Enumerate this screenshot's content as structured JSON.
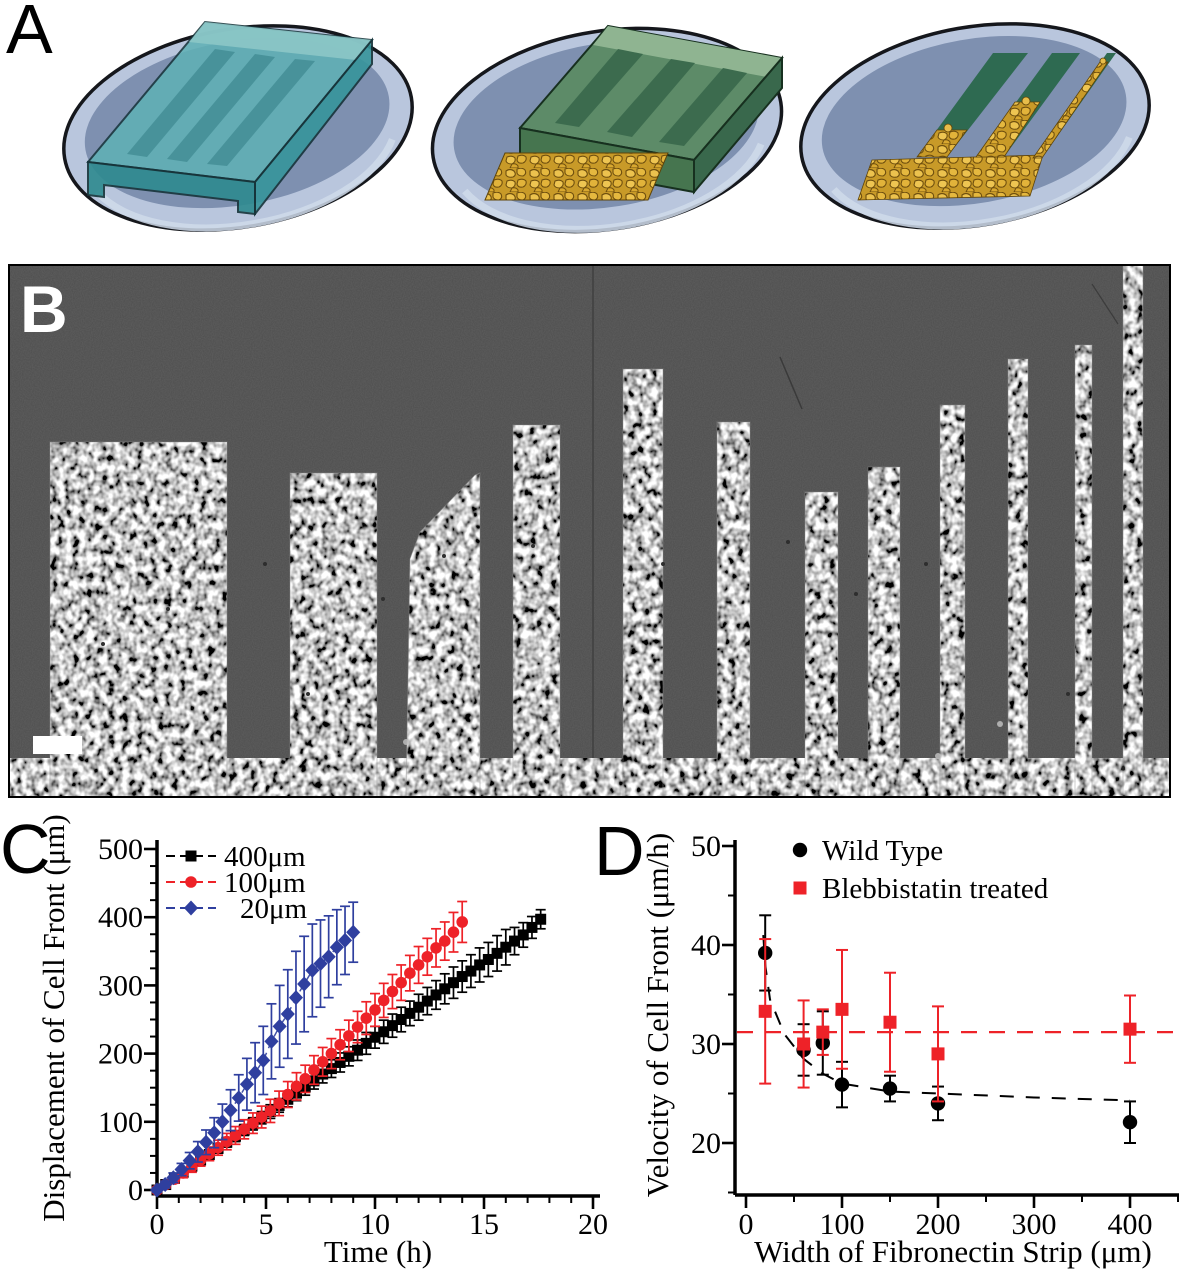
{
  "panel_labels": {
    "a": "A",
    "b": "B",
    "c": "C",
    "d": "D"
  },
  "colors": {
    "accent_red": "#ee2228",
    "accent_blue": "#2f3f9f",
    "black": "#000000",
    "dish_rim": "#b9c6dd",
    "dish_surface": "#7e90b0",
    "stamp_teal": "#5fb1b5",
    "stamp_teal_groove": "#458f97",
    "stamp_green": "#5d8b68",
    "stamp_green_stripe": "#3c6b4e",
    "fibronectin_strip_green": "#2e6a51",
    "cell_gold": "#d9a830",
    "micrograph_bg": "#4f4f4f"
  },
  "panel_b": {
    "background": "#4f4f4f",
    "border_color": "#000000",
    "seam_x": 585,
    "band_top": 494,
    "strips": [
      [
        42,
        177,
        178
      ],
      [
        282,
        87,
        209
      ],
      [
        505,
        47,
        161
      ],
      [
        615,
        40,
        105
      ],
      [
        709,
        33,
        158
      ],
      [
        797,
        33,
        228
      ],
      [
        860,
        32,
        203
      ],
      [
        932,
        25,
        141
      ],
      [
        1000,
        20,
        95
      ],
      [
        1067,
        17,
        81
      ],
      [
        1115,
        20,
        0
      ]
    ],
    "wedge": [
      [
        472,
        209
      ],
      [
        472,
        534
      ],
      [
        398,
        534
      ],
      [
        402,
        295
      ],
      [
        412,
        268
      ],
      [
        467,
        211
      ]
    ],
    "scale_bar": [
      25,
      472,
      49,
      18
    ]
  },
  "chart_data": [
    {
      "type": "scatter",
      "panel": "C",
      "title": "",
      "xlabel": "Time (h)",
      "ylabel": "Displacement of Cell Front (μm)",
      "xlim": [
        0,
        20
      ],
      "ylim": [
        0,
        500
      ],
      "xticks": [
        0,
        5,
        10,
        15,
        20
      ],
      "yticks": [
        0,
        100,
        200,
        300,
        400,
        500
      ],
      "x_minor_step": 1,
      "y_minor_step": 25,
      "grid": false,
      "legend_position": "top-left",
      "series": [
        {
          "name": "400μm",
          "color": "#000000",
          "marker": "square",
          "msize": 11,
          "line_dash": "10 4 2 4",
          "x": [
            0,
            0.4,
            0.8,
            1.2,
            1.6,
            2,
            2.4,
            2.8,
            3.2,
            3.6,
            4,
            4.4,
            4.8,
            5.2,
            5.6,
            6,
            6.4,
            6.8,
            7.2,
            7.6,
            8,
            8.4,
            8.8,
            9.2,
            9.6,
            10,
            10.4,
            10.8,
            11.2,
            11.6,
            12,
            12.4,
            12.8,
            13.2,
            13.6,
            14,
            14.4,
            14.8,
            15.2,
            15.6,
            16,
            16.4,
            16.8,
            17.2,
            17.6
          ],
          "y": [
            0,
            8,
            17,
            26,
            35,
            44,
            52,
            61,
            70,
            79,
            88,
            97,
            106,
            115,
            124,
            133,
            142,
            151,
            160,
            170,
            178,
            187,
            196,
            205,
            215,
            224,
            232,
            241,
            250,
            259,
            268,
            277,
            286,
            295,
            304,
            313,
            321,
            330,
            338,
            347,
            356,
            365,
            374,
            385,
            397
          ],
          "yerr": [
            3,
            4,
            4,
            5,
            5,
            6,
            6,
            7,
            7,
            8,
            8,
            9,
            9,
            10,
            10,
            11,
            11,
            12,
            12,
            13,
            13,
            14,
            14,
            15,
            16,
            16,
            17,
            17,
            18,
            18,
            19,
            20,
            21,
            22,
            23,
            23,
            24,
            25,
            25,
            26,
            26,
            20,
            18,
            16,
            14
          ]
        },
        {
          "name": "100μm",
          "color": "#ee2228",
          "marker": "circle",
          "msize": 11.6,
          "line_dash": "8 5",
          "x": [
            0,
            0.4,
            0.8,
            1.2,
            1.6,
            2,
            2.4,
            2.8,
            3.2,
            3.6,
            4,
            4.4,
            4.8,
            5.2,
            5.6,
            6,
            6.4,
            6.8,
            7.2,
            7.6,
            8,
            8.4,
            8.8,
            9.2,
            9.6,
            10,
            10.4,
            10.8,
            11.2,
            11.6,
            12,
            12.4,
            12.8,
            13.2,
            13.6,
            14
          ],
          "y": [
            0,
            8,
            16,
            25,
            34,
            44,
            53,
            62,
            71,
            80,
            89,
            98,
            107,
            116,
            127,
            140,
            152,
            163,
            176,
            188,
            200,
            213,
            226,
            239,
            252,
            264,
            278,
            291,
            304,
            318,
            330,
            342,
            355,
            365,
            378,
            393
          ],
          "yerr": [
            4,
            5,
            6,
            7,
            8,
            9,
            10,
            11,
            12,
            13,
            14,
            15,
            16,
            17,
            18,
            19,
            20,
            20,
            21,
            21,
            22,
            22,
            23,
            23,
            24,
            24,
            25,
            25,
            26,
            26,
            27,
            27,
            28,
            28,
            29,
            30
          ]
        },
        {
          "name": "20μm",
          "color": "#2f3f9f",
          "marker": "diamond",
          "msize": 15,
          "line_dash": "8 5",
          "x": [
            0,
            0.375,
            0.75,
            1.125,
            1.5,
            1.875,
            2.25,
            2.625,
            3,
            3.375,
            3.75,
            4.125,
            4.5,
            4.875,
            5.25,
            5.625,
            6,
            6.375,
            6.75,
            7.125,
            7.5,
            7.875,
            8.25,
            8.625,
            9
          ],
          "y": [
            0,
            8,
            18,
            30,
            43,
            56,
            70,
            84,
            100,
            117,
            135,
            155,
            172,
            190,
            218,
            240,
            258,
            282,
            302,
            322,
            332,
            342,
            356,
            366,
            378
          ],
          "yerr": [
            3,
            5,
            7,
            9,
            12,
            15,
            18,
            22,
            26,
            30,
            34,
            38,
            44,
            50,
            55,
            60,
            65,
            68,
            70,
            68,
            64,
            60,
            55,
            50,
            44
          ]
        }
      ]
    },
    {
      "type": "scatter",
      "panel": "D",
      "title": "",
      "xlabel": "Width of Fibronectin Strip (μm)",
      "ylabel": "Velocity of Cell Front  (μm/h)",
      "xlim": [
        0,
        450
      ],
      "ylim": [
        15,
        50
      ],
      "xticks": [
        0,
        100,
        200,
        300,
        400
      ],
      "yticks": [
        20,
        30,
        40,
        50
      ],
      "x_minor_step": 50,
      "y_minor_step": 5,
      "grid": false,
      "legend_position": "top-left",
      "series": [
        {
          "name": "Wild Type",
          "color": "#000000",
          "marker": "circle",
          "msize": 14.4,
          "x": [
            20,
            60,
            80,
            100,
            150,
            200,
            400
          ],
          "y": [
            39.2,
            29.4,
            30.1,
            25.9,
            25.5,
            24.0,
            22.1
          ],
          "yerr": [
            3.8,
            2.6,
            3.2,
            2.3,
            1.3,
            1.7,
            2.1
          ]
        },
        {
          "name": "Blebbistatin treated",
          "color": "#ee2228",
          "marker": "square",
          "msize": 13,
          "x": [
            20,
            60,
            80,
            100,
            150,
            200,
            400
          ],
          "y": [
            33.3,
            30.0,
            31.2,
            33.5,
            32.2,
            29.0,
            31.5
          ],
          "yerr": [
            7.3,
            4.4,
            2.3,
            6.0,
            5.0,
            4.8,
            3.4
          ]
        }
      ],
      "reference_line": {
        "y": 31.2,
        "color": "#ee2228",
        "dash": "16 12"
      },
      "fit_curve": {
        "color": "#000000",
        "dash": "14 12",
        "x": [
          18,
          20,
          25,
          40,
          60,
          80,
          100,
          150,
          200,
          300,
          400
        ],
        "y": [
          41,
          38,
          34.5,
          31,
          28.5,
          27,
          26,
          25.2,
          25,
          24.6,
          24.3
        ]
      }
    }
  ]
}
